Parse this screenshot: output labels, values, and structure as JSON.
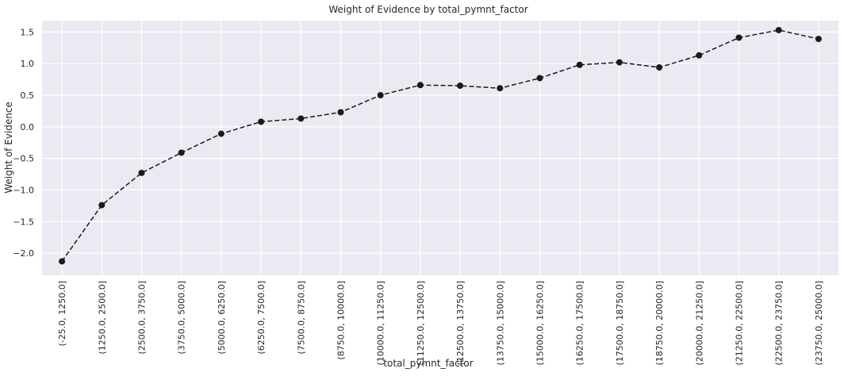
{
  "chart_data": {
    "type": "line",
    "title": "Weight of Evidence by total_pymnt_factor",
    "xlabel": "total_pymnt_factor",
    "ylabel": "Weight of Evidence",
    "ylim": [
      -2.35,
      1.68
    ],
    "yticks": [
      -2.0,
      -1.5,
      -1.0,
      -0.5,
      0.0,
      0.5,
      1.0,
      1.5
    ],
    "ytick_labels": [
      "−2.0",
      "−1.5",
      "−1.0",
      "−0.5",
      "0.0",
      "0.5",
      "1.0",
      "1.5"
    ],
    "grid": true,
    "line_style": "dashed",
    "marker": "circle",
    "colors": {
      "plot_bg": "#eaeaf2",
      "grid": "#ffffff",
      "line": "#1a1a1a"
    },
    "categories": [
      "(-25.0, 1250.0]",
      "(1250.0, 2500.0]",
      "(2500.0, 3750.0]",
      "(3750.0, 5000.0]",
      "(5000.0, 6250.0]",
      "(6250.0, 7500.0]",
      "(7500.0, 8750.0]",
      "(8750.0, 10000.0]",
      "(10000.0, 11250.0]",
      "(11250.0, 12500.0]",
      "(12500.0, 13750.0]",
      "(13750.0, 15000.0]",
      "(15000.0, 16250.0]",
      "(16250.0, 17500.0]",
      "(17500.0, 18750.0]",
      "(18750.0, 20000.0]",
      "(20000.0, 21250.0]",
      "(21250.0, 22500.0]",
      "(22500.0, 23750.0]",
      "(23750.0, 25000.0]"
    ],
    "values": [
      -2.13,
      -1.24,
      -0.73,
      -0.41,
      -0.11,
      0.08,
      0.13,
      0.23,
      0.5,
      0.66,
      0.65,
      0.61,
      0.77,
      0.98,
      1.02,
      0.94,
      1.13,
      1.41,
      1.53,
      1.39
    ]
  }
}
